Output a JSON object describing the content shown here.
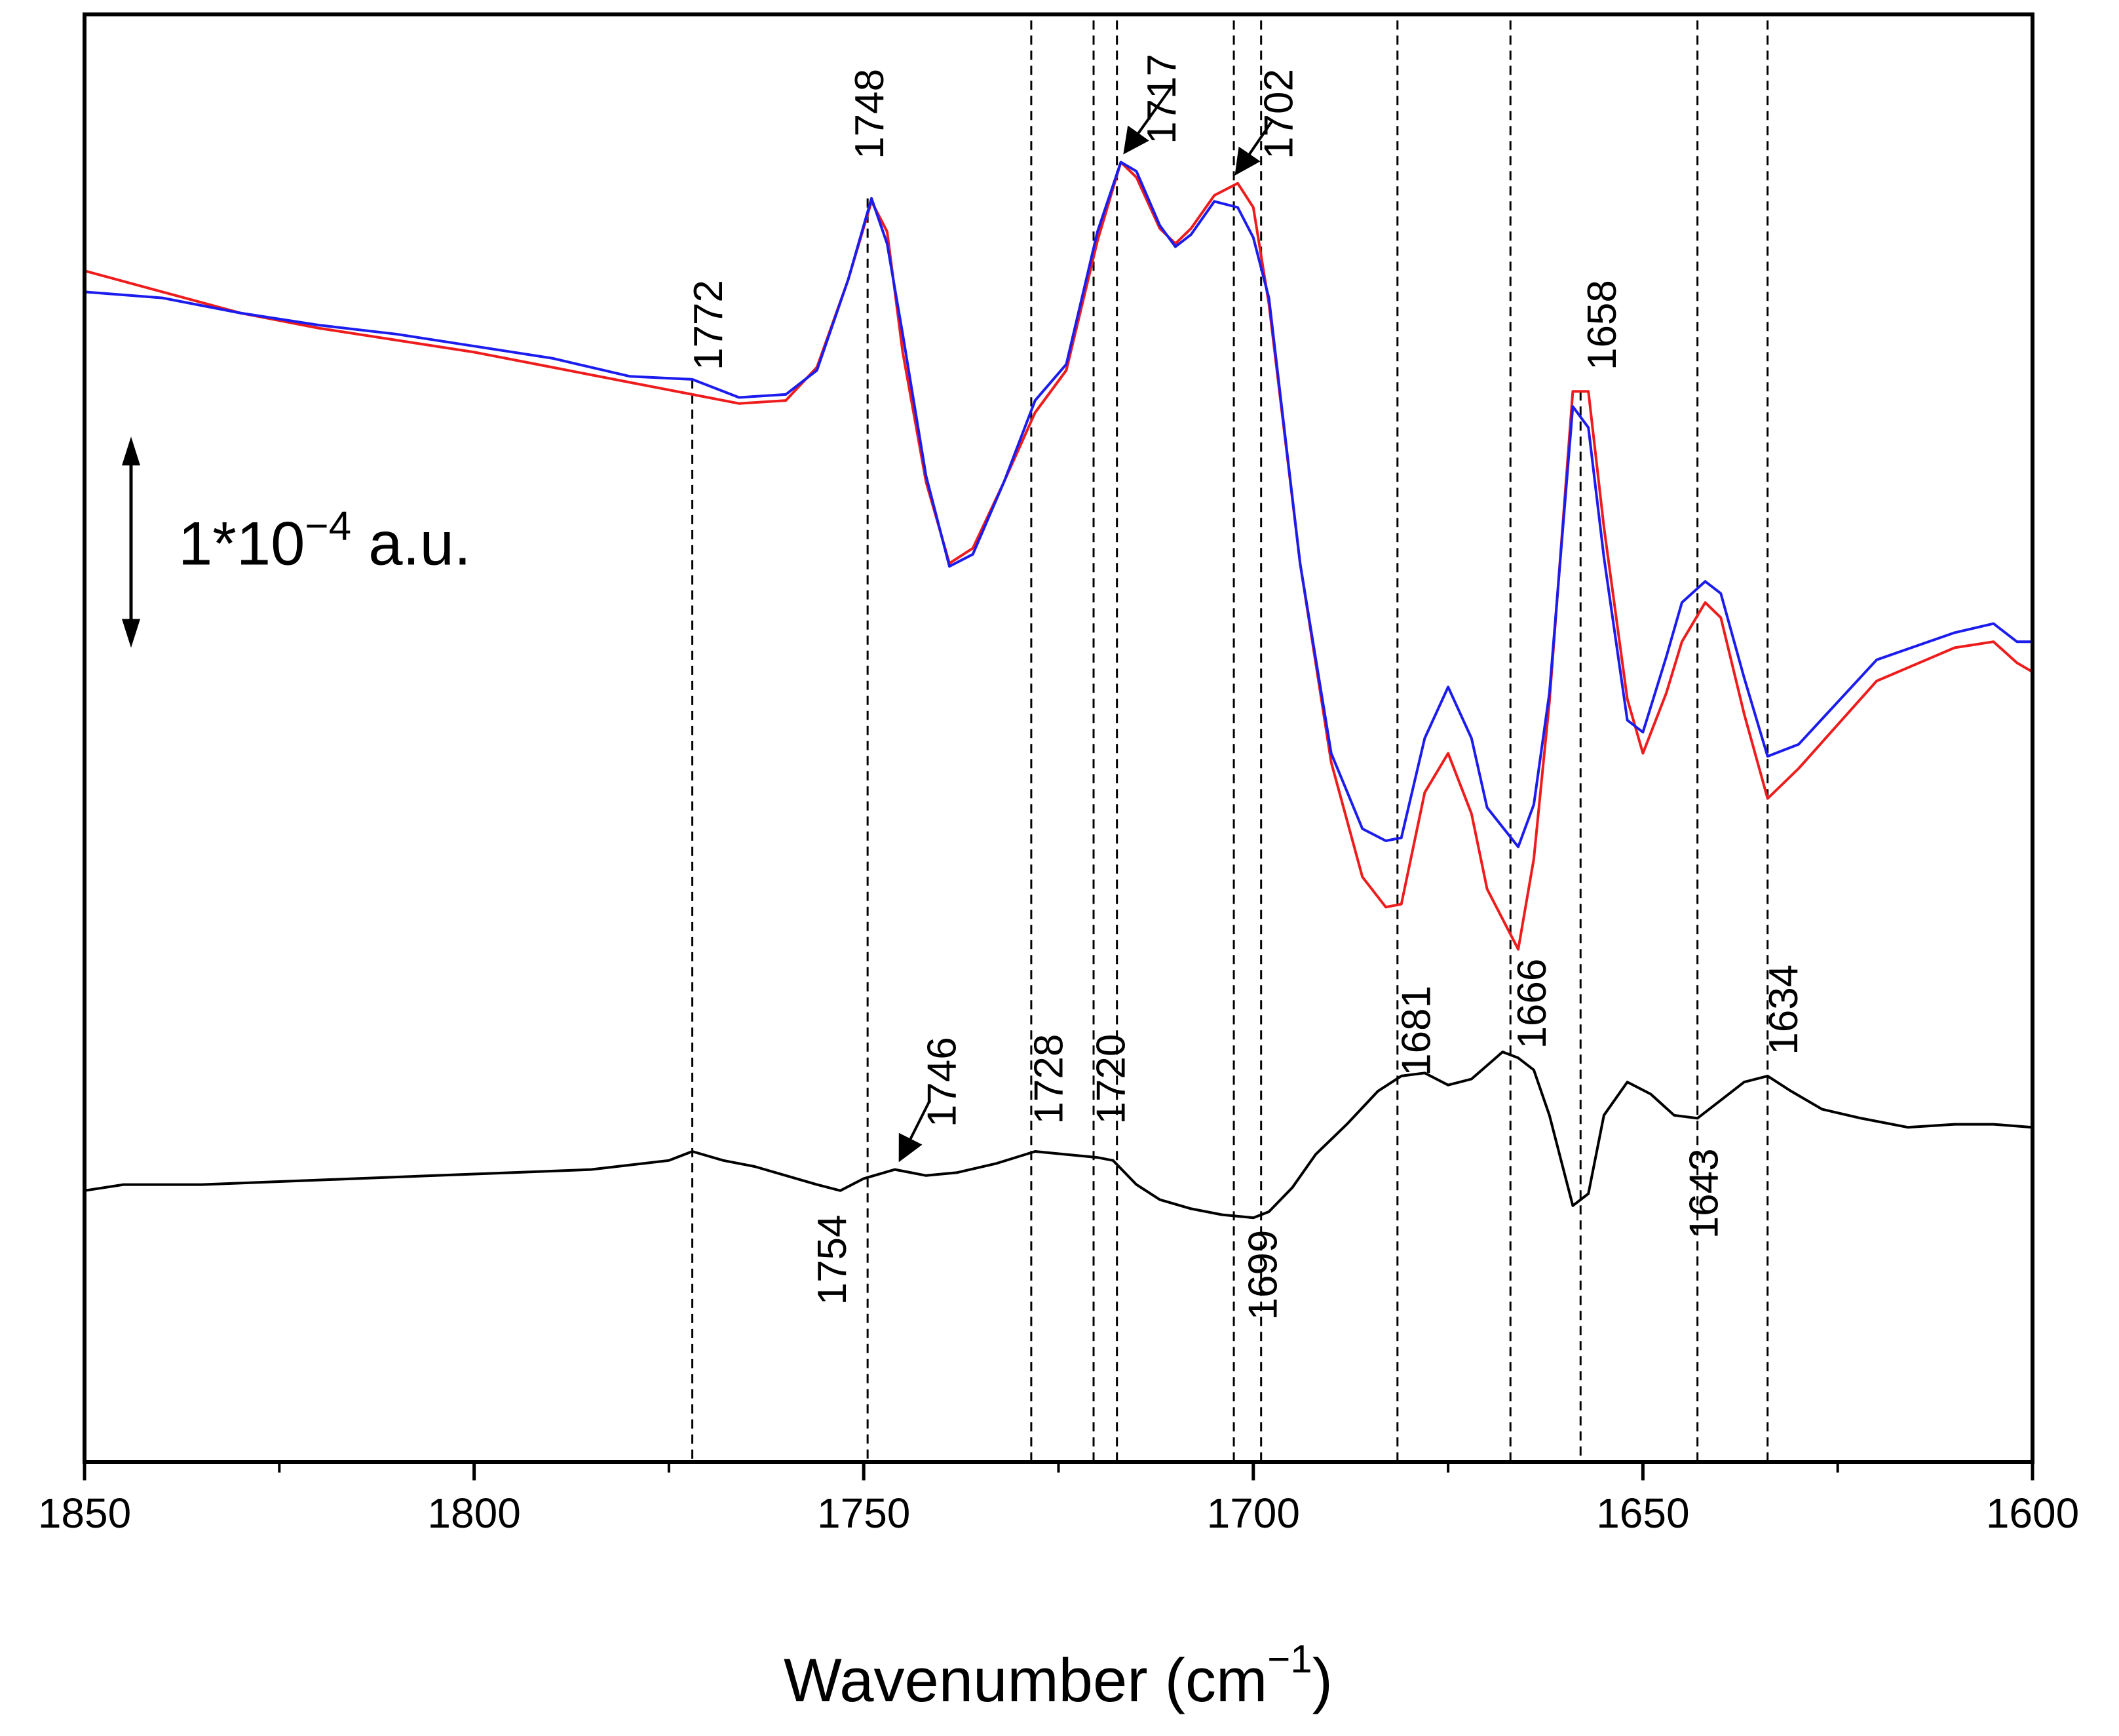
{
  "chart_data": {
    "type": "line",
    "title": "",
    "xlabel": "Wavenumber (cm−1)",
    "xlabel_main": "Wavenumber (cm",
    "xlabel_sup": "−1",
    "xlabel_close": ")",
    "ylabel": "",
    "xlim": [
      1850,
      1600
    ],
    "ylim": [
      -24,
      24
    ],
    "x_ticks": [
      1850,
      1800,
      1750,
      1700,
      1650,
      1600
    ],
    "x_tick_labels": [
      "1850",
      "1800",
      "1750",
      "1700",
      "1650",
      "1600"
    ],
    "x_minor_ticks": [
      1825,
      1775,
      1725,
      1675,
      1625
    ],
    "scale_bar": {
      "label_prefix": "1*10",
      "label_exp": "−4",
      "label_suffix": " a.u.",
      "center_y": 6.5,
      "half_length": 3.5
    },
    "series": [
      {
        "name": "red",
        "color": "#ee1c1c",
        "x": [
          1850,
          1840,
          1830,
          1820,
          1810,
          1800,
          1790,
          1780,
          1772,
          1766,
          1760,
          1756,
          1752,
          1749,
          1747,
          1745,
          1742,
          1739,
          1736,
          1732,
          1728,
          1724,
          1720,
          1717,
          1715,
          1712,
          1710,
          1708,
          1705,
          1702,
          1700,
          1698,
          1694,
          1690,
          1686,
          1683,
          1681,
          1678,
          1675,
          1672,
          1670,
          1666,
          1664,
          1662,
          1659,
          1657,
          1655,
          1652,
          1650,
          1647,
          1645,
          1642,
          1640,
          1637,
          1634,
          1630,
          1620,
          1610,
          1605,
          1602,
          1600
        ],
        "y": [
          15.5,
          14.8,
          14.1,
          13.6,
          13.2,
          12.8,
          12.3,
          11.8,
          11.4,
          11.1,
          11.2,
          12.3,
          15.2,
          17.8,
          16.8,
          12.8,
          8.5,
          5.8,
          6.3,
          8.5,
          10.8,
          12.2,
          16.5,
          19.1,
          18.6,
          16.9,
          16.4,
          16.9,
          18.0,
          18.4,
          17.6,
          14.4,
          5.8,
          -0.8,
          -4.6,
          -5.6,
          -5.5,
          -1.8,
          -0.5,
          -2.5,
          -5.0,
          -7.0,
          -4.0,
          1.2,
          11.5,
          11.5,
          7.0,
          1.3,
          -0.5,
          1.5,
          3.2,
          4.5,
          4.0,
          0.8,
          -2.0,
          -1.0,
          1.9,
          3.0,
          3.2,
          2.5,
          2.2
        ]
      },
      {
        "name": "blue",
        "color": "#1c1cee",
        "x": [
          1850,
          1840,
          1830,
          1820,
          1810,
          1800,
          1790,
          1780,
          1772,
          1766,
          1760,
          1756,
          1752,
          1749,
          1747,
          1745,
          1742,
          1739,
          1736,
          1732,
          1728,
          1724,
          1720,
          1717,
          1715,
          1712,
          1710,
          1708,
          1705,
          1702,
          1700,
          1698,
          1694,
          1690,
          1686,
          1683,
          1681,
          1678,
          1675,
          1672,
          1670,
          1666,
          1664,
          1662,
          1659,
          1657,
          1655,
          1652,
          1650,
          1647,
          1645,
          1642,
          1640,
          1637,
          1634,
          1630,
          1620,
          1610,
          1605,
          1602,
          1600
        ],
        "y": [
          14.8,
          14.6,
          14.1,
          13.7,
          13.4,
          13.0,
          12.6,
          12.0,
          11.9,
          11.3,
          11.4,
          12.2,
          15.2,
          17.9,
          16.4,
          13.4,
          8.7,
          5.7,
          6.1,
          8.5,
          11.2,
          12.4,
          16.8,
          19.1,
          18.8,
          17.0,
          16.3,
          16.7,
          17.8,
          17.6,
          16.6,
          14.6,
          5.8,
          -0.5,
          -3.0,
          -3.4,
          -3.3,
          0.0,
          1.7,
          0.0,
          -2.3,
          -3.6,
          -2.2,
          1.5,
          11.0,
          10.3,
          6.0,
          0.6,
          0.2,
          2.7,
          4.5,
          5.2,
          4.8,
          2.0,
          -0.6,
          -0.2,
          2.6,
          3.5,
          3.8,
          3.2,
          3.2
        ]
      },
      {
        "name": "black",
        "color": "#000000",
        "x": [
          1850,
          1845,
          1835,
          1825,
          1815,
          1805,
          1795,
          1785,
          1775,
          1772,
          1768,
          1764,
          1760,
          1756,
          1753,
          1750,
          1746,
          1742,
          1738,
          1733,
          1728,
          1724,
          1720,
          1718,
          1715,
          1712,
          1708,
          1704,
          1700,
          1698,
          1695,
          1692,
          1688,
          1684,
          1681,
          1678,
          1675,
          1672,
          1668,
          1666,
          1664,
          1662,
          1659,
          1657,
          1655,
          1652,
          1649,
          1646,
          1643,
          1640,
          1637,
          1634,
          1631,
          1627,
          1622,
          1616,
          1610,
          1605,
          1600
        ],
        "y": [
          -15.0,
          -14.8,
          -14.8,
          -14.7,
          -14.6,
          -14.5,
          -14.4,
          -14.3,
          -14.0,
          -13.7,
          -14.0,
          -14.2,
          -14.5,
          -14.8,
          -15.0,
          -14.6,
          -14.3,
          -14.5,
          -14.4,
          -14.1,
          -13.7,
          -13.8,
          -13.9,
          -14.0,
          -14.8,
          -15.3,
          -15.6,
          -15.8,
          -15.9,
          -15.7,
          -14.9,
          -13.8,
          -12.8,
          -11.7,
          -11.2,
          -11.1,
          -11.5,
          -11.3,
          -10.4,
          -10.6,
          -11.0,
          -12.5,
          -15.5,
          -15.1,
          -12.5,
          -11.4,
          -11.8,
          -12.5,
          -12.6,
          -12.0,
          -11.4,
          -11.2,
          -11.7,
          -12.3,
          -12.6,
          -12.9,
          -12.8,
          -12.8,
          -12.9
        ]
      }
    ],
    "reference_lines": [
      {
        "x": 1772,
        "y_top": 11.9
      },
      {
        "x": 1749.5,
        "y_top": 17.9
      },
      {
        "x": 1728.5,
        "y_top": 23.8
      },
      {
        "x": 1720.5,
        "y_top": 23.8
      },
      {
        "x": 1717.5,
        "y_top": 23.8
      },
      {
        "x": 1702.5,
        "y_top": 23.8
      },
      {
        "x": 1699,
        "y_top": 23.8
      },
      {
        "x": 1681.5,
        "y_top": 23.8
      },
      {
        "x": 1667,
        "y_top": 23.8
      },
      {
        "x": 1658,
        "y_top": 11.5
      },
      {
        "x": 1643,
        "y_top": 23.8
      },
      {
        "x": 1634,
        "y_top": 23.8
      }
    ],
    "annotations": [
      {
        "text": "1748",
        "x": 1747.5,
        "y": 19.2,
        "anchor": "start"
      },
      {
        "text": "1717",
        "x": 1710,
        "y": 19.7,
        "anchor": "start"
      },
      {
        "text": "1702",
        "x": 1695,
        "y": 19.2,
        "anchor": "start"
      },
      {
        "text": "1772",
        "x": 1768.2,
        "y": 12.2,
        "anchor": "start"
      },
      {
        "text": "1658",
        "x": 1653.5,
        "y": 12.2,
        "anchor": "start"
      },
      {
        "text": "1746",
        "x": 1738.2,
        "y": -12.9,
        "anchor": "start"
      },
      {
        "text": "1728",
        "x": 1724.5,
        "y": -12.8,
        "anchor": "start"
      },
      {
        "text": "1720",
        "x": 1716.5,
        "y": -12.8,
        "anchor": "start"
      },
      {
        "text": "1681",
        "x": 1677.3,
        "y": -11.2,
        "anchor": "start"
      },
      {
        "text": "1666",
        "x": 1662.5,
        "y": -10.3,
        "anchor": "start"
      },
      {
        "text": "1634",
        "x": 1630.2,
        "y": -10.5,
        "anchor": "start"
      },
      {
        "text": "1754",
        "x": 1752.3,
        "y": -15.8,
        "anchor": "end"
      },
      {
        "text": "1699",
        "x": 1697,
        "y": -16.3,
        "anchor": "end"
      },
      {
        "text": "1643",
        "x": 1640.4,
        "y": -13.6,
        "anchor": "end"
      }
    ],
    "arrows": [
      {
        "from_x": 1710.5,
        "from_y": 21.6,
        "to_x": 1716.3,
        "to_y": 19.5
      },
      {
        "from_x": 1697.5,
        "from_y": 20.5,
        "to_x": 1702,
        "to_y": 18.8
      },
      {
        "from_x": 1741.5,
        "from_y": -12.0,
        "to_x": 1745.2,
        "to_y": -13.9
      }
    ]
  }
}
